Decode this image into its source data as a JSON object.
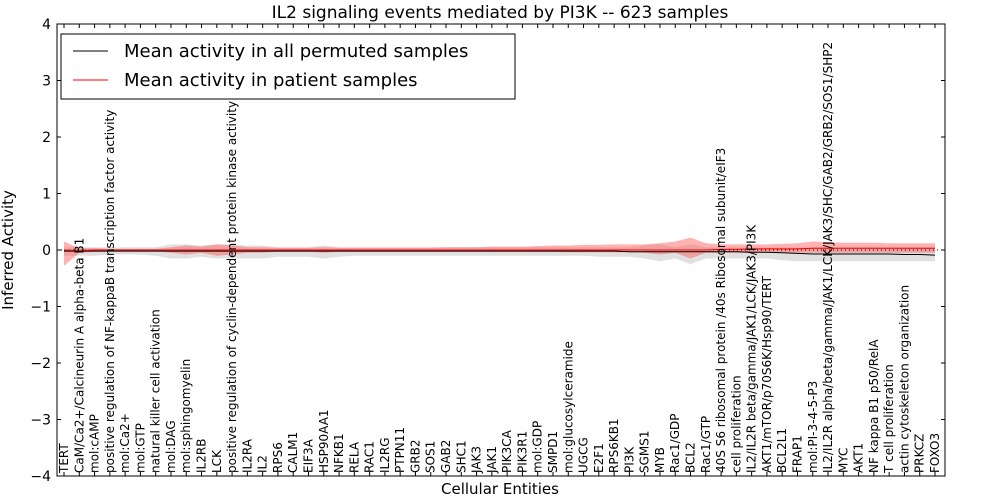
{
  "chart_data": {
    "type": "line",
    "title": "IL2 signaling events mediated by PI3K -- 623 samples",
    "xlabel": "Cellular Entities",
    "ylabel": "Inferred Activity",
    "ylim": [
      -4,
      4
    ],
    "yticks": [
      -4,
      -3,
      -2,
      -1,
      0,
      1,
      2,
      3,
      4
    ],
    "grid": false,
    "legend_position": "top-left",
    "colors": {
      "permuted": "#000000",
      "patient": "#ff0000",
      "permuted_band": "#bbbbbb",
      "patient_band": "#ff5555"
    },
    "categories": [
      "TERT",
      "CaM/Ca2+/Calcineurin A alpha-beta B1",
      "mol:cAMP",
      "positive regulation of NF-kappaB transcription factor activity",
      "mol:Ca2+",
      "mol:GTP",
      "natural killer cell activation",
      "mol:DAG",
      "mol:sphingomyelin",
      "IL2RB",
      "LCK",
      "positive regulation of cyclin-dependent protein kinase activity",
      "IL2RA",
      "IL2",
      "RPS6",
      "CALM1",
      "EIF3A",
      "HSP90AA1",
      "NFKB1",
      "RELA",
      "RAC1",
      "IL2RG",
      "PTPN11",
      "GRB2",
      "SOS1",
      "GAB2",
      "SHC1",
      "JAK3",
      "JAK1",
      "PIK3CA",
      "PIK3R1",
      "mol:GDP",
      "SMPD1",
      "mol:glucosylceramide",
      "UGCG",
      "E2F1",
      "RPS6KB1",
      "PI3K",
      "SGMS1",
      "MYB",
      "Rac1/GDP",
      "BCL2",
      "Rac1/GTP",
      "40S S6 ribosomal protein /40s Ribosomal subunit/eIF3",
      "cell proliferation",
      "IL2/IL2R beta/gamma/JAK1/LCK/JAK3/PI3K",
      "AKT1/mTOR/p70S6K/Hsp90/TERT",
      "BCL2L1",
      "FRAP1",
      "mol:PI-3-4-5-P3",
      "IL2/IL2R alpha/beta/gamma/JAK1/LCK/JAK3/SHC/GAB2/GRB2/SOS1/SHP2",
      "MYC",
      "AKT1",
      "NF kappa B1 p50/RelA",
      "T cell proliferation",
      "actin cytoskeleton organization",
      "PRKCZ",
      "FOXO3"
    ],
    "series": [
      {
        "name": "Mean activity in all permuted samples",
        "color": "#000000",
        "values": [
          -0.02,
          -0.02,
          -0.02,
          -0.02,
          -0.02,
          -0.02,
          -0.02,
          -0.02,
          -0.02,
          -0.02,
          -0.02,
          -0.02,
          -0.02,
          -0.02,
          -0.02,
          -0.02,
          -0.02,
          -0.02,
          -0.02,
          -0.02,
          -0.02,
          -0.02,
          -0.02,
          -0.02,
          -0.02,
          -0.02,
          -0.02,
          -0.02,
          -0.02,
          -0.02,
          -0.02,
          -0.02,
          -0.02,
          -0.02,
          -0.02,
          -0.02,
          -0.02,
          -0.03,
          -0.03,
          -0.03,
          -0.03,
          -0.03,
          -0.03,
          -0.03,
          -0.03,
          -0.04,
          -0.04,
          -0.05,
          -0.06,
          -0.07,
          -0.07,
          -0.07,
          -0.07,
          -0.07,
          -0.07,
          -0.08,
          -0.08,
          -0.09
        ],
        "lower": [
          -0.1,
          -0.1,
          -0.1,
          -0.08,
          -0.08,
          -0.08,
          -0.1,
          -0.15,
          -0.15,
          -0.12,
          -0.15,
          -0.15,
          -0.15,
          -0.15,
          -0.12,
          -0.12,
          -0.12,
          -0.15,
          -0.12,
          -0.1,
          -0.1,
          -0.1,
          -0.1,
          -0.1,
          -0.1,
          -0.1,
          -0.1,
          -0.1,
          -0.1,
          -0.1,
          -0.1,
          -0.1,
          -0.1,
          -0.1,
          -0.1,
          -0.12,
          -0.12,
          -0.12,
          -0.15,
          -0.2,
          -0.15,
          -0.25,
          -0.15,
          -0.15,
          -0.15,
          -0.15,
          -0.15,
          -0.18,
          -0.2,
          -0.2,
          -0.2,
          -0.2,
          -0.2,
          -0.2,
          -0.2,
          -0.2,
          -0.2,
          -0.2
        ],
        "upper": [
          0.05,
          0.05,
          0.05,
          0.05,
          0.05,
          0.05,
          0.05,
          0.1,
          0.1,
          0.08,
          0.1,
          0.1,
          0.08,
          0.08,
          0.05,
          0.05,
          0.05,
          0.08,
          0.05,
          0.05,
          0.05,
          0.05,
          0.05,
          0.05,
          0.05,
          0.05,
          0.05,
          0.05,
          0.05,
          0.05,
          0.05,
          0.05,
          0.05,
          0.05,
          0.05,
          0.05,
          0.05,
          0.05,
          0.08,
          0.1,
          0.05,
          0.1,
          0.05,
          0.05,
          0.05,
          0.05,
          0.05,
          0.05,
          0.05,
          0.05,
          0.05,
          0.05,
          0.05,
          0.05,
          0.05,
          0.05,
          0.05,
          0.05
        ]
      },
      {
        "name": "Mean activity in patient samples",
        "color": "#ff0000",
        "values": [
          0.0,
          -0.01,
          0.0,
          0.0,
          0.0,
          0.0,
          0.0,
          0.0,
          0.0,
          0.0,
          0.0,
          0.0,
          0.0,
          0.0,
          0.0,
          0.0,
          0.0,
          0.0,
          0.0,
          0.0,
          0.0,
          0.0,
          0.0,
          0.0,
          0.0,
          0.0,
          0.0,
          0.0,
          0.0,
          0.0,
          0.0,
          0.0,
          0.0,
          0.0,
          0.0,
          0.0,
          0.0,
          0.0,
          0.0,
          0.0,
          0.0,
          0.0,
          0.0,
          0.01,
          0.01,
          0.02,
          0.02,
          0.02,
          0.02,
          0.03,
          0.03,
          0.03,
          0.03,
          0.03,
          0.03,
          0.03,
          0.03,
          0.03
        ],
        "lower": [
          -0.28,
          -0.05,
          -0.03,
          -0.02,
          -0.02,
          -0.02,
          -0.02,
          -0.05,
          -0.08,
          -0.05,
          -0.1,
          -0.08,
          -0.05,
          -0.05,
          -0.03,
          -0.03,
          -0.03,
          -0.05,
          -0.03,
          -0.03,
          -0.03,
          -0.03,
          -0.03,
          -0.03,
          -0.03,
          -0.03,
          -0.03,
          -0.03,
          -0.03,
          -0.03,
          -0.03,
          -0.03,
          -0.03,
          -0.04,
          -0.04,
          -0.04,
          -0.04,
          -0.04,
          -0.05,
          -0.08,
          -0.05,
          -0.15,
          -0.05,
          -0.05,
          -0.05,
          -0.05,
          -0.05,
          -0.05,
          -0.05,
          -0.05,
          -0.05,
          -0.05,
          -0.05,
          -0.05,
          -0.05,
          -0.05,
          -0.05,
          -0.05
        ],
        "upper": [
          0.15,
          0.03,
          0.03,
          0.02,
          0.02,
          0.02,
          0.02,
          0.05,
          0.08,
          0.06,
          0.1,
          0.08,
          0.05,
          0.05,
          0.04,
          0.04,
          0.04,
          0.05,
          0.04,
          0.04,
          0.04,
          0.04,
          0.04,
          0.04,
          0.04,
          0.05,
          0.05,
          0.05,
          0.06,
          0.06,
          0.06,
          0.07,
          0.08,
          0.08,
          0.09,
          0.09,
          0.1,
          0.1,
          0.1,
          0.12,
          0.15,
          0.22,
          0.12,
          0.1,
          0.1,
          0.1,
          0.1,
          0.11,
          0.12,
          0.15,
          0.14,
          0.13,
          0.13,
          0.13,
          0.12,
          0.12,
          0.12,
          0.12
        ]
      }
    ]
  }
}
